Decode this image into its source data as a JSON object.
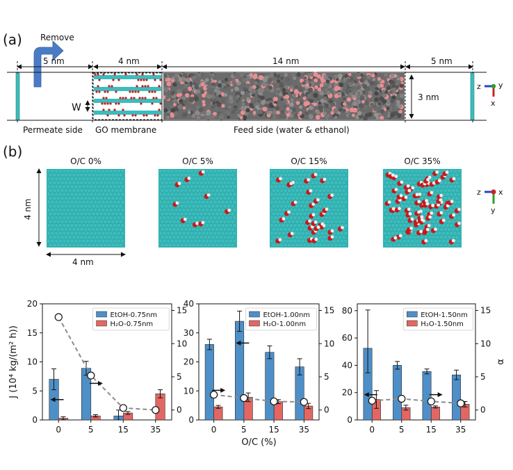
{
  "panel_a": {
    "label": "(a)",
    "remove": "Remove",
    "dims": [
      "5 nm",
      "4 nm",
      "14 nm",
      "5 nm"
    ],
    "height_label": "3 nm",
    "w_label": "W",
    "captions": [
      "Permeate side",
      "GO membrane",
      "Feed side (water & ethanol)"
    ],
    "axes_z": "z",
    "axes_y": "y",
    "axes_x": "x"
  },
  "panel_b": {
    "label": "(b)",
    "sheets": [
      {
        "title": "O/C 0%",
        "groups": 0
      },
      {
        "title": "O/C 5%",
        "groups": 9
      },
      {
        "title": "O/C 15%",
        "groups": 30
      },
      {
        "title": "O/C 35%",
        "groups": 70
      }
    ],
    "dim_v": "4 nm",
    "dim_h": "4 nm",
    "axes_z": "z",
    "axes_x": "x",
    "axes_y": "y"
  },
  "colors": {
    "etoh": "#4f8fc7",
    "h2o": "#e26763",
    "sel": "#8c8c8c",
    "carbon": "#3cbcbc",
    "oxygen": "#c8181b",
    "hydrogen": "#f2f2f2",
    "feed_gray": "#555555",
    "feed_pink": "#e88e92",
    "arrow_blue": "#4a7cc6"
  },
  "chart_data": [
    {
      "type": "bar",
      "categories": [
        "0",
        "5",
        "15",
        "35"
      ],
      "ylabel": "J (10⁴ kg/(m² h))",
      "ylim": [
        0,
        20
      ],
      "yticks": [
        "0",
        "5",
        "10",
        "15",
        "20"
      ],
      "y2lim": [
        -1.5,
        16
      ],
      "y2ticks": [
        "0",
        "5",
        "10",
        "15"
      ],
      "series": [
        {
          "name": "EtOH-0.75nm",
          "values": [
            7.0,
            8.9,
            0.7,
            0
          ],
          "err": [
            1.8,
            1.2,
            1.0,
            0
          ]
        },
        {
          "name": "H₂O-0.75nm",
          "values": [
            0.3,
            0.7,
            1.2,
            4.5
          ],
          "err": [
            0.25,
            0.2,
            0.25,
            0.7
          ]
        }
      ],
      "selectivity": [
        14.0,
        5.2,
        0.3,
        0.0
      ],
      "arrows": [
        {
          "cat": "0",
          "y": 3.5,
          "dir": "left"
        },
        {
          "cat": "5",
          "y": 6.3,
          "dir": "right"
        }
      ]
    },
    {
      "type": "bar",
      "categories": [
        "0",
        "5",
        "15",
        "35"
      ],
      "xlabel": "O/C (%)",
      "ylim": [
        0,
        40
      ],
      "yticks": [
        "0",
        "10",
        "20",
        "30",
        "40"
      ],
      "y2lim": [
        -1.5,
        16
      ],
      "y2ticks": [
        "0",
        "5",
        "10",
        "15"
      ],
      "series": [
        {
          "name": "EtOH-1.00nm",
          "values": [
            26.0,
            34.0,
            23.3,
            18.3
          ],
          "err": [
            1.8,
            3.5,
            2.2,
            2.8
          ]
        },
        {
          "name": "H₂O-1.00nm",
          "values": [
            4.5,
            7.8,
            6.3,
            4.8
          ],
          "err": [
            0.5,
            1.5,
            0.7,
            0.9
          ]
        }
      ],
      "selectivity": [
        2.3,
        1.8,
        1.3,
        1.2
      ],
      "arrows": [
        {
          "cat": "0",
          "y": 10.2,
          "dir": "right"
        },
        {
          "cat": "5",
          "y": 26.5,
          "dir": "left"
        }
      ]
    },
    {
      "type": "bar",
      "categories": [
        "0",
        "5",
        "15",
        "35"
      ],
      "ylabel": "α",
      "ylim": [
        0,
        85
      ],
      "yticks": [
        "0",
        "20",
        "40",
        "60",
        "80"
      ],
      "y2lim": [
        -1.5,
        16
      ],
      "y2ticks": [
        "0",
        "5",
        "10",
        "15"
      ],
      "series": [
        {
          "name": "EtOH-1.50nm",
          "values": [
            52.5,
            40.0,
            35.5,
            33.0
          ],
          "err": [
            28.0,
            2.8,
            1.8,
            3.5
          ],
          "err_lo": [
            18.0,
            2.8,
            1.8,
            3.5
          ]
        },
        {
          "name": "H₂O-1.50nm",
          "values": [
            15.0,
            9.0,
            9.5,
            11.5
          ],
          "err": [
            6.5,
            1.8,
            0.8,
            2.0
          ]
        }
      ],
      "selectivity": [
        1.4,
        1.7,
        1.3,
        1.0
      ],
      "arrows": [
        {
          "cat": "0",
          "y": 18.5,
          "dir": "left"
        },
        {
          "cat": "15",
          "y": 18.5,
          "dir": "right"
        }
      ]
    }
  ]
}
